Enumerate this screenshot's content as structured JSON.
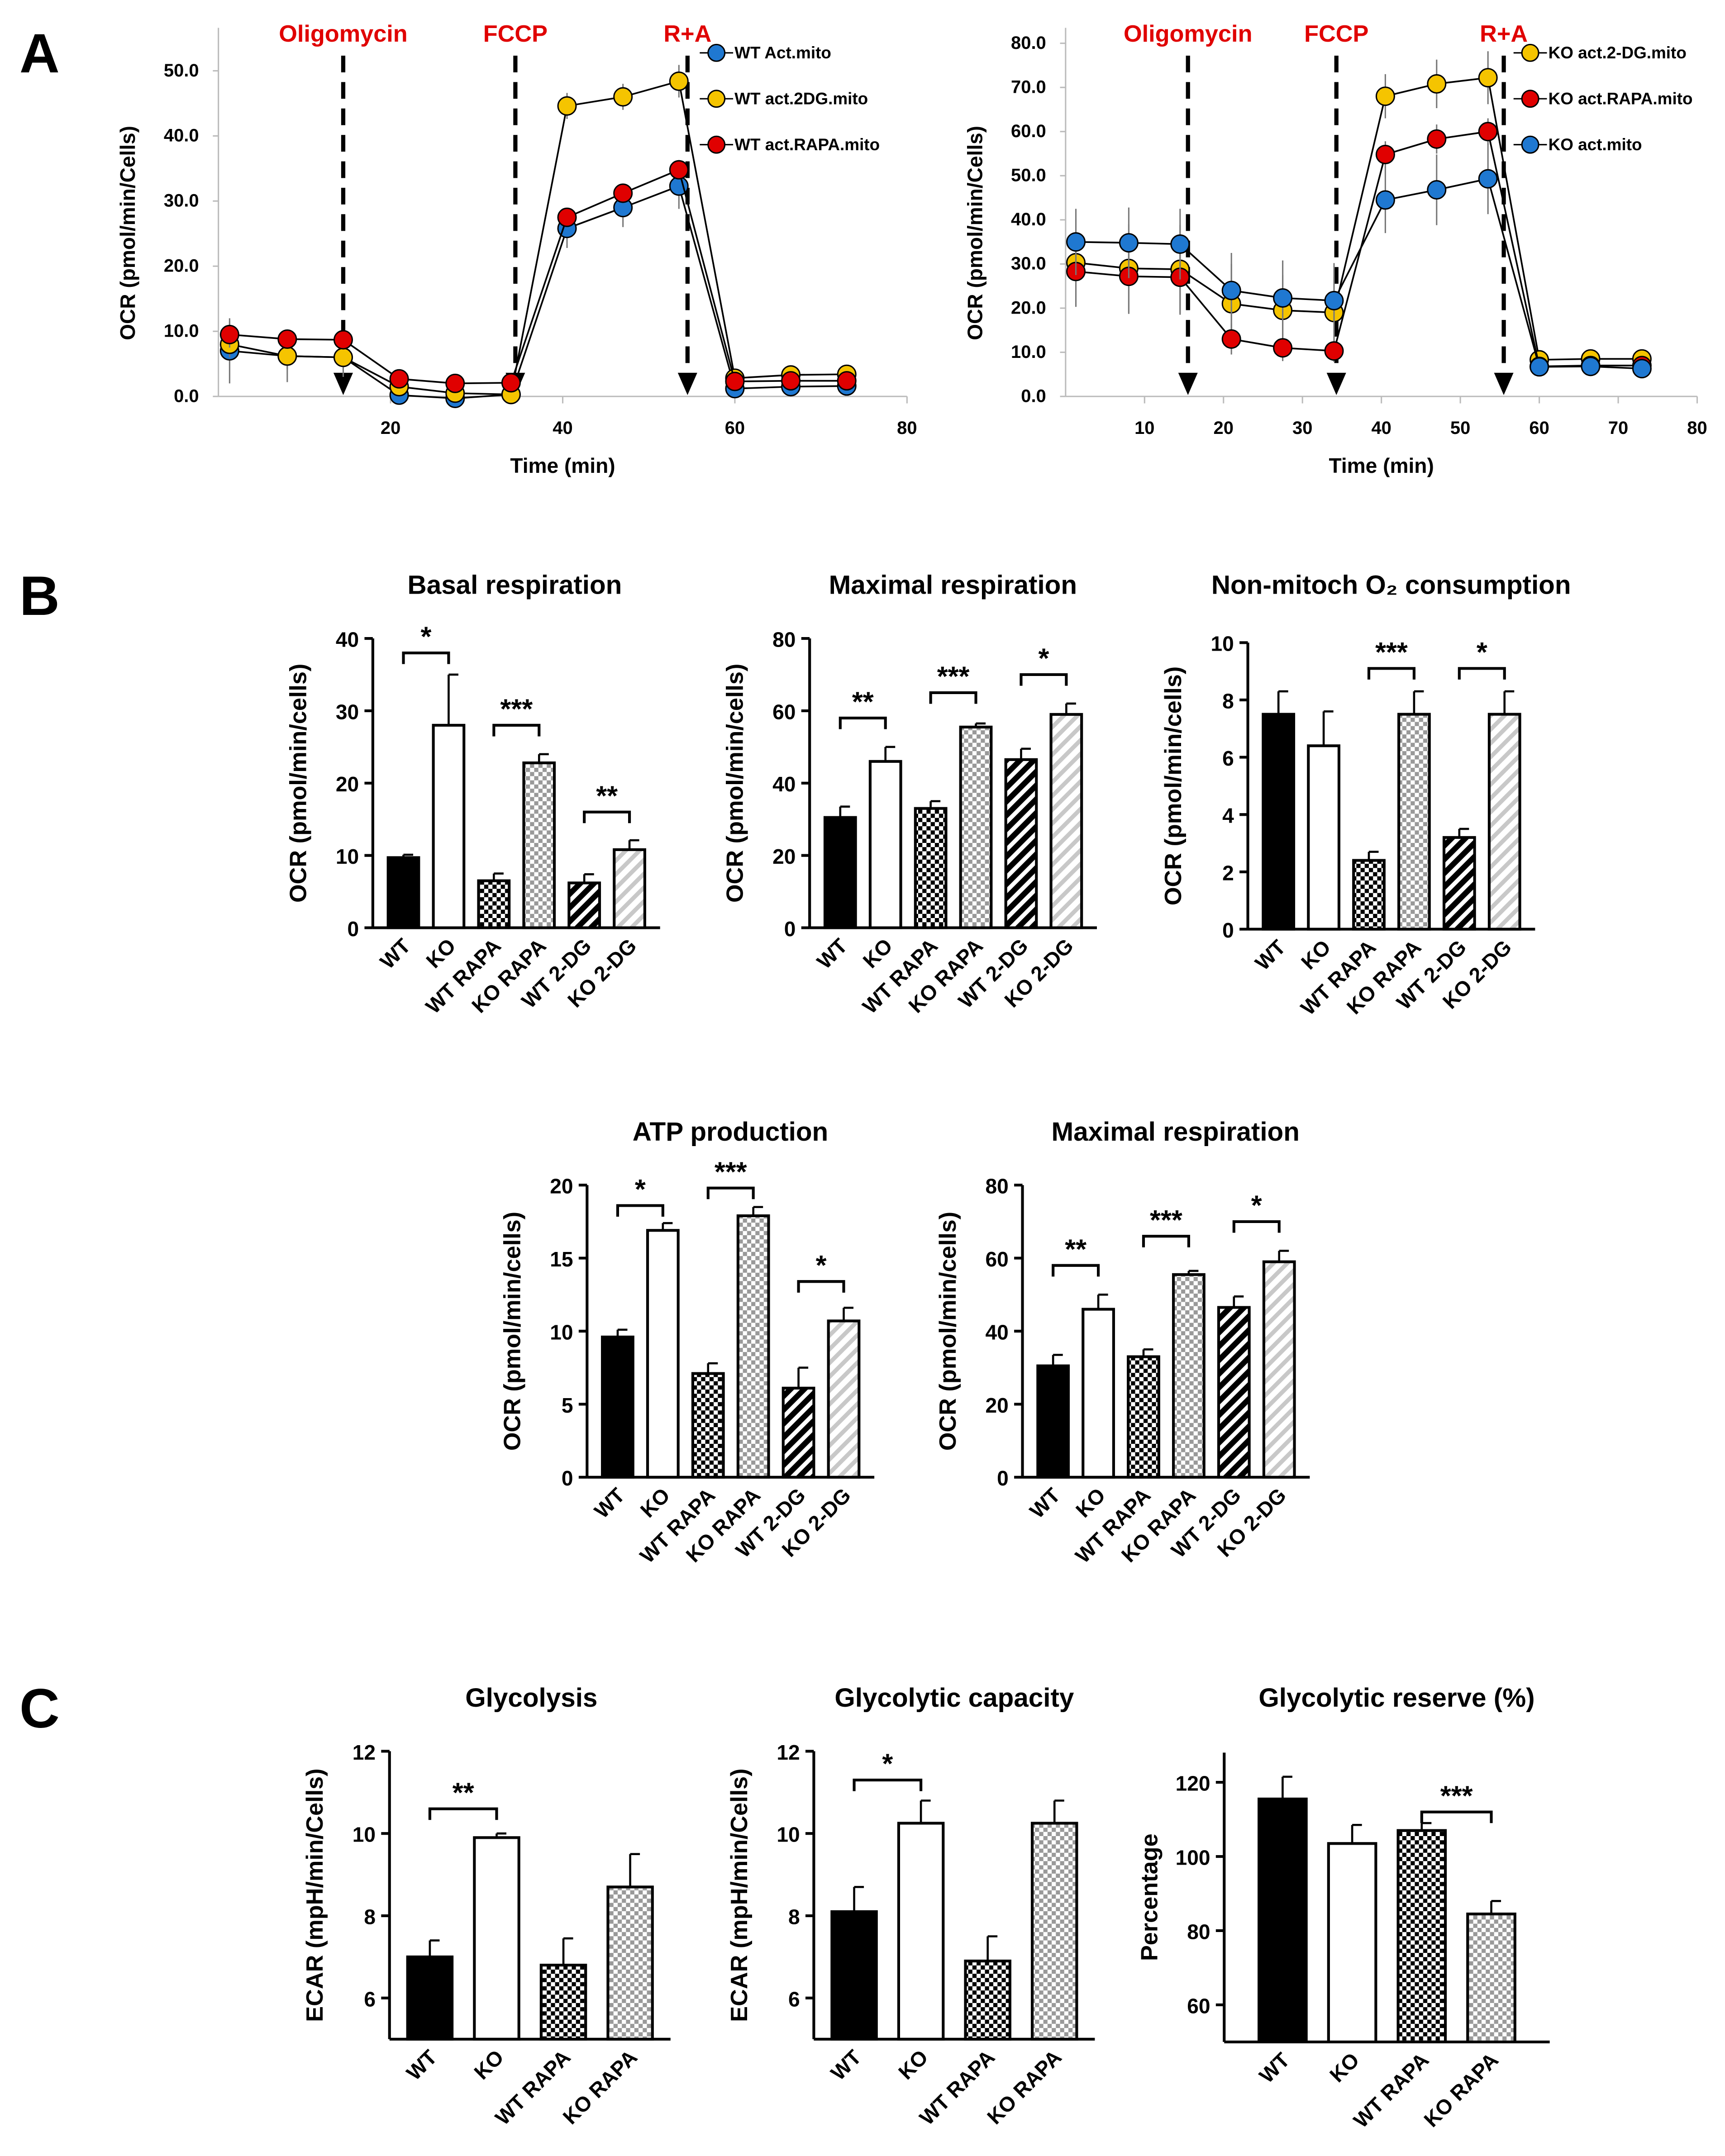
{
  "panels": {
    "a": "A",
    "b": "B",
    "c": "C"
  },
  "chart_data": [
    {
      "id": "A-WT",
      "type": "line",
      "title": "",
      "xlabel": "Time (min)",
      "ylabel": "OCR (pmol/min/Cells)",
      "xlim": [
        0,
        80
      ],
      "ylim": [
        0,
        56.6
      ],
      "xticks": [
        20,
        40,
        60,
        80
      ],
      "yticks": [
        "0.0",
        "10.0",
        "20.0",
        "30.0",
        "40.0",
        "50.0"
      ],
      "injections": [
        {
          "label": "Oligomycin",
          "x": 14.5
        },
        {
          "label": "FCCP",
          "x": 34.5
        },
        {
          "label": "R+A",
          "x": 54.5
        }
      ],
      "x": [
        1.3,
        8,
        14.5,
        21,
        27.5,
        34,
        40.5,
        47,
        53.5,
        60,
        66.5,
        73
      ],
      "series": [
        {
          "name": "WT Act.mito",
          "color": "#1f78d1",
          "values": [
            7,
            6.2,
            6,
            0.2,
            -0.3,
            0.3,
            25.8,
            29,
            32.3,
            1.2,
            1.5,
            1.6
          ],
          "err": [
            5,
            4,
            3,
            1,
            1,
            1,
            3,
            3,
            3.5,
            0.5,
            0.5,
            0.5
          ]
        },
        {
          "name": "WT act.2DG.mito",
          "color": "#f5c400",
          "values": [
            8,
            6.2,
            6,
            1.5,
            0.5,
            0.3,
            44.6,
            46,
            48.4,
            2.8,
            3.3,
            3.4
          ],
          "err": [
            2,
            2,
            2,
            1,
            1,
            1,
            2,
            2,
            2.5,
            0.5,
            0.5,
            0.5
          ]
        },
        {
          "name": "WT act.RAPA.mito",
          "color": "#e00000",
          "values": [
            9.5,
            8.8,
            8.7,
            2.7,
            2,
            2.1,
            27.5,
            31.2,
            34.8,
            2.3,
            2.4,
            2.4
          ],
          "err": [
            2,
            1,
            1,
            0.5,
            0.5,
            0.5,
            1,
            1.5,
            1.5,
            0.5,
            0.5,
            0.5
          ]
        }
      ]
    },
    {
      "id": "A-KO",
      "type": "line",
      "title": "",
      "xlabel": "Time (min)",
      "ylabel": "OCR (pmol/min/Cells)",
      "xlim": [
        0,
        80
      ],
      "ylim": [
        0,
        83.5
      ],
      "xticks": [
        10,
        20,
        30,
        40,
        50,
        60,
        70,
        80
      ],
      "yticks": [
        "0.0",
        "10.0",
        "20.0",
        "30.0",
        "40.0",
        "50.0",
        "60.0",
        "70.0",
        "80.0"
      ],
      "injections": [
        {
          "label": "Oligomycin",
          "x": 15.5
        },
        {
          "label": "FCCP",
          "x": 34.3
        },
        {
          "label": "R+A",
          "x": 55.5
        }
      ],
      "x": [
        1.3,
        8,
        14.5,
        21,
        27.5,
        34,
        40.5,
        47,
        53.5,
        60,
        66.5,
        73
      ],
      "series": [
        {
          "name": "KO act.2-DG.mito",
          "color": "#f5c400",
          "values": [
            30.3,
            29,
            28.8,
            21,
            19.5,
            19,
            68,
            70.8,
            72.2,
            8.3,
            8.5,
            8.5
          ],
          "err": [
            10,
            10,
            10,
            9,
            8,
            8,
            5,
            5.5,
            6,
            0.5,
            0.5,
            0.5
          ]
        },
        {
          "name": "KO act.RAPA.mito",
          "color": "#e00000",
          "values": [
            28.3,
            27.2,
            27,
            13,
            11,
            10.3,
            54.8,
            58.3,
            60,
            6.8,
            7,
            7
          ],
          "err": [
            8,
            8.5,
            8.5,
            3.5,
            3,
            2.5,
            3,
            3.3,
            3,
            0.5,
            0.5,
            0.5
          ]
        },
        {
          "name": "KO act.mito",
          "color": "#1f78d1",
          "values": [
            35,
            34.8,
            34.5,
            24,
            22.3,
            21.7,
            44.5,
            46.8,
            49.3,
            6.7,
            6.8,
            6.3
          ],
          "err": [
            7.5,
            8,
            8,
            8.5,
            8.5,
            8.5,
            7.5,
            8,
            8,
            0.5,
            0.5,
            0.5
          ]
        }
      ]
    },
    {
      "id": "B-basal",
      "type": "bar",
      "title": "Basal respiration",
      "ylabel": "OCR (pmol/min/cells)",
      "ylim": [
        0,
        40
      ],
      "yticks": [
        0,
        10,
        20,
        30,
        40
      ],
      "categories": [
        "WT",
        "KO",
        "WT RAPA",
        "KO RAPA",
        "WT 2-DG",
        "KO 2-DG"
      ],
      "values": [
        9.7,
        28,
        6.5,
        22.8,
        6.2,
        10.8
      ],
      "err": [
        0.4,
        7,
        1,
        1.2,
        1.2,
        1.3
      ],
      "significance": [
        {
          "from": 0,
          "to": 1,
          "label": "*",
          "y": 38
        },
        {
          "from": 2,
          "to": 3,
          "label": "***",
          "y": 28
        },
        {
          "from": 4,
          "to": 5,
          "label": "**",
          "y": 16
        }
      ]
    },
    {
      "id": "B-maximal",
      "type": "bar",
      "title": "Maximal respiration",
      "ylabel": "OCR (pmol/min/cells)",
      "ylim": [
        0,
        80
      ],
      "yticks": [
        0,
        20,
        40,
        60,
        80
      ],
      "categories": [
        "WT",
        "KO",
        "WT RAPA",
        "KO RAPA",
        "WT 2-DG",
        "KO 2-DG"
      ],
      "values": [
        30.5,
        46,
        33,
        55.5,
        46.5,
        59
      ],
      "err": [
        3,
        4,
        2,
        1,
        3,
        3
      ],
      "significance": [
        {
          "from": 0,
          "to": 1,
          "label": "**",
          "y": 58
        },
        {
          "from": 2,
          "to": 3,
          "label": "***",
          "y": 65
        },
        {
          "from": 4,
          "to": 5,
          "label": "*",
          "y": 70
        }
      ]
    },
    {
      "id": "B-nonmito",
      "type": "bar",
      "title": "Non-mitoch O₂ consumption",
      "ylabel": "OCR (pmol/min/cells)",
      "ylim": [
        0,
        10
      ],
      "yticks": [
        0,
        2,
        4,
        6,
        8,
        10
      ],
      "categories": [
        "WT",
        "KO",
        "WT RAPA",
        "KO RAPA",
        "WT 2-DG",
        "KO 2-DG"
      ],
      "values": [
        7.5,
        6.4,
        2.4,
        7.5,
        3.2,
        7.5
      ],
      "err": [
        0.8,
        1.2,
        0.3,
        0.8,
        0.3,
        0.8
      ],
      "significance": [
        {
          "from": 2,
          "to": 3,
          "label": "***",
          "y": 9.1
        },
        {
          "from": 4,
          "to": 5,
          "label": "*",
          "y": 9.1
        }
      ]
    },
    {
      "id": "B-atp",
      "type": "bar",
      "title": "ATP production",
      "ylabel": "OCR (pmol/min/cells)",
      "ylim": [
        0,
        20
      ],
      "yticks": [
        0,
        5,
        10,
        15,
        20
      ],
      "categories": [
        "WT",
        "KO",
        "WT RAPA",
        "KO RAPA",
        "WT 2-DG",
        "KO 2-DG"
      ],
      "values": [
        9.6,
        16.9,
        7.1,
        17.9,
        6.1,
        10.7
      ],
      "err": [
        0.5,
        0.5,
        0.7,
        0.6,
        1.4,
        0.9
      ],
      "significance": [
        {
          "from": 0,
          "to": 1,
          "label": "*",
          "y": 18.6
        },
        {
          "from": 2,
          "to": 3,
          "label": "***",
          "y": 19.8
        },
        {
          "from": 4,
          "to": 5,
          "label": "*",
          "y": 13.4
        }
      ]
    },
    {
      "id": "B-maximal-2",
      "type": "bar",
      "title": "Maximal respiration",
      "ylabel": "OCR (pmol/min/cells)",
      "ylim": [
        0,
        80
      ],
      "yticks": [
        0,
        20,
        40,
        60,
        80
      ],
      "categories": [
        "WT",
        "KO",
        "WT RAPA",
        "KO RAPA",
        "WT 2-DG",
        "KO 2-DG"
      ],
      "values": [
        30.5,
        46,
        33,
        55.5,
        46.5,
        59
      ],
      "err": [
        3,
        4,
        2,
        1,
        3,
        3
      ],
      "significance": [
        {
          "from": 0,
          "to": 1,
          "label": "**",
          "y": 58
        },
        {
          "from": 2,
          "to": 3,
          "label": "***",
          "y": 66
        },
        {
          "from": 4,
          "to": 5,
          "label": "*",
          "y": 70
        }
      ]
    },
    {
      "id": "C-glycolysis",
      "type": "bar",
      "title": "Glycolysis",
      "ylabel": "ECAR (mpH/min/Cells)",
      "ylim": [
        5,
        12
      ],
      "yticks": [
        6,
        8,
        10,
        12
      ],
      "categories": [
        "WT",
        "KO",
        "WT RAPA",
        "KO RAPA"
      ],
      "values": [
        7.0,
        9.9,
        6.8,
        8.7
      ],
      "err": [
        0.4,
        0.1,
        0.65,
        0.8
      ],
      "significance": [
        {
          "from": 0,
          "to": 1,
          "label": "**",
          "y": 10.6
        }
      ]
    },
    {
      "id": "C-capacity",
      "type": "bar",
      "title": "Glycolytic capacity",
      "ylabel": "ECAR (mpH/min/Cells)",
      "ylim": [
        5,
        12
      ],
      "yticks": [
        6,
        8,
        10,
        12
      ],
      "categories": [
        "WT",
        "KO",
        "WT RAPA",
        "KO RAPA"
      ],
      "values": [
        8.1,
        10.25,
        6.9,
        10.25
      ],
      "err": [
        0.6,
        0.55,
        0.6,
        0.55
      ],
      "significance": [
        {
          "from": 0,
          "to": 1,
          "label": "*",
          "y": 11.3
        }
      ]
    },
    {
      "id": "C-reserve",
      "type": "bar",
      "title": "Glycolytic reserve (%)",
      "ylabel": "Percentage",
      "ylim": [
        50,
        128
      ],
      "yticks": [
        60,
        80,
        100,
        120
      ],
      "categories": [
        "WT",
        "KO",
        "WT RAPA",
        "KO RAPA"
      ],
      "values": [
        115.5,
        103.5,
        107,
        84.5
      ],
      "err": [
        6,
        5,
        2,
        3.5
      ],
      "significance": [
        {
          "from": 2,
          "to": 3,
          "label": "***",
          "y": 112
        }
      ]
    }
  ]
}
